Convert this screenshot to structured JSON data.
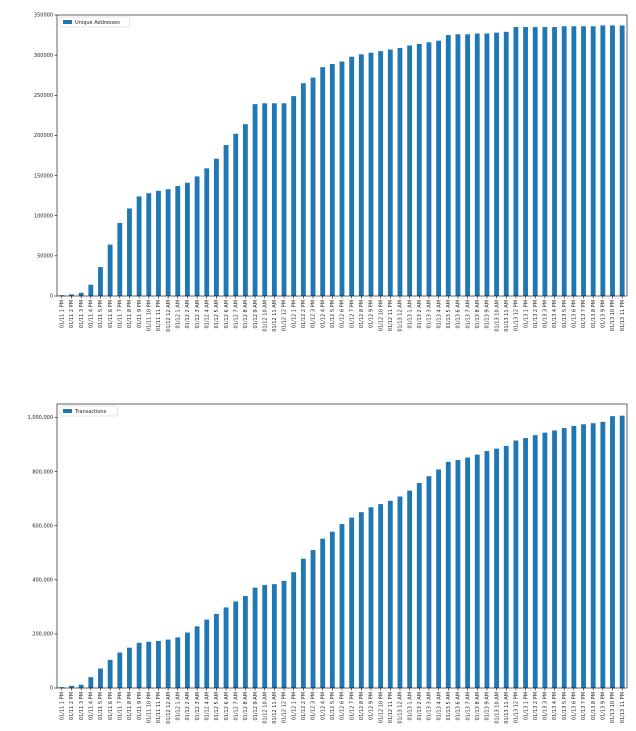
{
  "chart_data": [
    {
      "type": "bar",
      "title": "",
      "xlabel": "",
      "ylabel": "",
      "legend": "top-left",
      "grid": false,
      "color": "#1f77b4",
      "ylim": [
        0,
        350000
      ],
      "yticks": [
        0,
        50000,
        100000,
        150000,
        200000,
        250000,
        300000,
        350000
      ],
      "ytick_labels": [
        "0",
        "50000",
        "100000",
        "150000",
        "200000",
        "250000",
        "300000",
        "350000"
      ],
      "categories": [
        "01/11 1 PM",
        "01/11 2 PM",
        "01/11 3 PM",
        "01/11 4 PM",
        "01/11 5 PM",
        "01/11 6 PM",
        "01/11 7 PM",
        "01/11 8 PM",
        "01/11 9 PM",
        "01/11 10 PM",
        "01/11 11 PM",
        "01/12 12 AM",
        "01/12 1 AM",
        "01/12 2 AM",
        "01/12 3 AM",
        "01/12 4 AM",
        "01/12 5 AM",
        "01/12 6 AM",
        "01/12 7 AM",
        "01/12 8 AM",
        "01/12 9 AM",
        "01/12 10 AM",
        "01/12 11 AM",
        "01/12 12 PM",
        "01/12 1 PM",
        "01/12 2 PM",
        "01/12 3 PM",
        "01/12 4 PM",
        "01/12 5 PM",
        "01/12 6 PM",
        "01/12 7 PM",
        "01/12 8 PM",
        "01/12 9 PM",
        "01/12 10 PM",
        "01/12 11 PM",
        "01/13 12 AM",
        "01/13 1 AM",
        "01/13 2 AM",
        "01/13 3 AM",
        "01/13 4 AM",
        "01/13 5 AM",
        "01/13 6 AM",
        "01/13 7 AM",
        "01/13 8 AM",
        "01/13 9 AM",
        "01/13 10 AM",
        "01/13 11 AM",
        "01/13 12 PM",
        "01/13 1 PM",
        "01/13 2 PM",
        "01/13 3 PM",
        "01/13 4 PM",
        "01/13 5 PM",
        "01/13 6 PM",
        "01/13 7 PM",
        "01/13 8 PM",
        "01/13 9 PM",
        "01/13 10 PM",
        "01/13 11 PM"
      ],
      "series": [
        {
          "name": "Unique Addresses",
          "values": [
            1000,
            2000,
            4000,
            14000,
            36000,
            64000,
            91000,
            109000,
            124000,
            128000,
            131000,
            133000,
            137000,
            141000,
            149000,
            159000,
            171000,
            188000,
            202000,
            214000,
            239000,
            240000,
            240000,
            240000,
            249000,
            265000,
            272000,
            285000,
            289000,
            292000,
            298000,
            301000,
            303000,
            305000,
            307000,
            309000,
            312000,
            314000,
            316000,
            318000,
            325000,
            326000,
            326000,
            327000,
            327000,
            328000,
            329000,
            335000,
            335000,
            335000,
            335000,
            335000,
            336000,
            336000,
            336000,
            336000,
            337000,
            337000,
            337000
          ]
        }
      ]
    },
    {
      "type": "bar",
      "title": "",
      "xlabel": "",
      "ylabel": "",
      "legend": "top-left",
      "grid": false,
      "color": "#1f77b4",
      "ylim": [
        0,
        1050000
      ],
      "yticks": [
        0,
        200000,
        400000,
        600000,
        800000,
        1000000
      ],
      "ytick_labels": [
        "0",
        "200,000",
        "400,000",
        "600,000",
        "800,000",
        "1,000,000"
      ],
      "categories": [
        "01/11 1 PM",
        "01/11 2 PM",
        "01/11 3 PM",
        "01/11 4 PM",
        "01/11 5 PM",
        "01/11 6 PM",
        "01/11 7 PM",
        "01/11 8 PM",
        "01/11 9 PM",
        "01/11 10 PM",
        "01/11 11 PM",
        "01/12 12 AM",
        "01/12 1 AM",
        "01/12 2 AM",
        "01/12 3 AM",
        "01/12 4 AM",
        "01/12 5 AM",
        "01/12 6 AM",
        "01/12 7 AM",
        "01/12 8 AM",
        "01/12 9 AM",
        "01/12 10 AM",
        "01/12 11 AM",
        "01/12 12 PM",
        "01/12 1 PM",
        "01/12 2 PM",
        "01/12 3 PM",
        "01/12 4 PM",
        "01/12 5 PM",
        "01/12 6 PM",
        "01/12 7 PM",
        "01/12 8 PM",
        "01/12 9 PM",
        "01/12 10 PM",
        "01/12 11 PM",
        "01/13 12 AM",
        "01/13 1 AM",
        "01/13 2 AM",
        "01/13 3 AM",
        "01/13 4 AM",
        "01/13 5 AM",
        "01/13 6 AM",
        "01/13 7 AM",
        "01/13 8 AM",
        "01/13 9 AM",
        "01/13 10 AM",
        "01/13 11 AM",
        "01/13 12 PM",
        "01/13 1 PM",
        "01/13 2 PM",
        "01/13 3 PM",
        "01/13 4 PM",
        "01/13 5 PM",
        "01/13 6 PM",
        "01/13 7 PM",
        "01/13 8 PM",
        "01/13 9 PM",
        "01/13 10 PM",
        "01/13 11 PM"
      ],
      "series": [
        {
          "name": "Transactions",
          "values": [
            3000,
            8000,
            12000,
            40000,
            72000,
            104000,
            131000,
            149000,
            167000,
            171000,
            174000,
            179000,
            187000,
            205000,
            228000,
            253000,
            274000,
            298000,
            320000,
            340000,
            371000,
            381000,
            384000,
            396000,
            428000,
            478000,
            510000,
            552000,
            578000,
            606000,
            630000,
            650000,
            668000,
            680000,
            692000,
            708000,
            730000,
            758000,
            783000,
            808000,
            836000,
            843000,
            852000,
            863000,
            876000,
            885000,
            895000,
            915000,
            924000,
            935000,
            944000,
            952000,
            961000,
            969000,
            975000,
            979000,
            984000,
            1005000,
            1007000
          ]
        }
      ]
    }
  ]
}
